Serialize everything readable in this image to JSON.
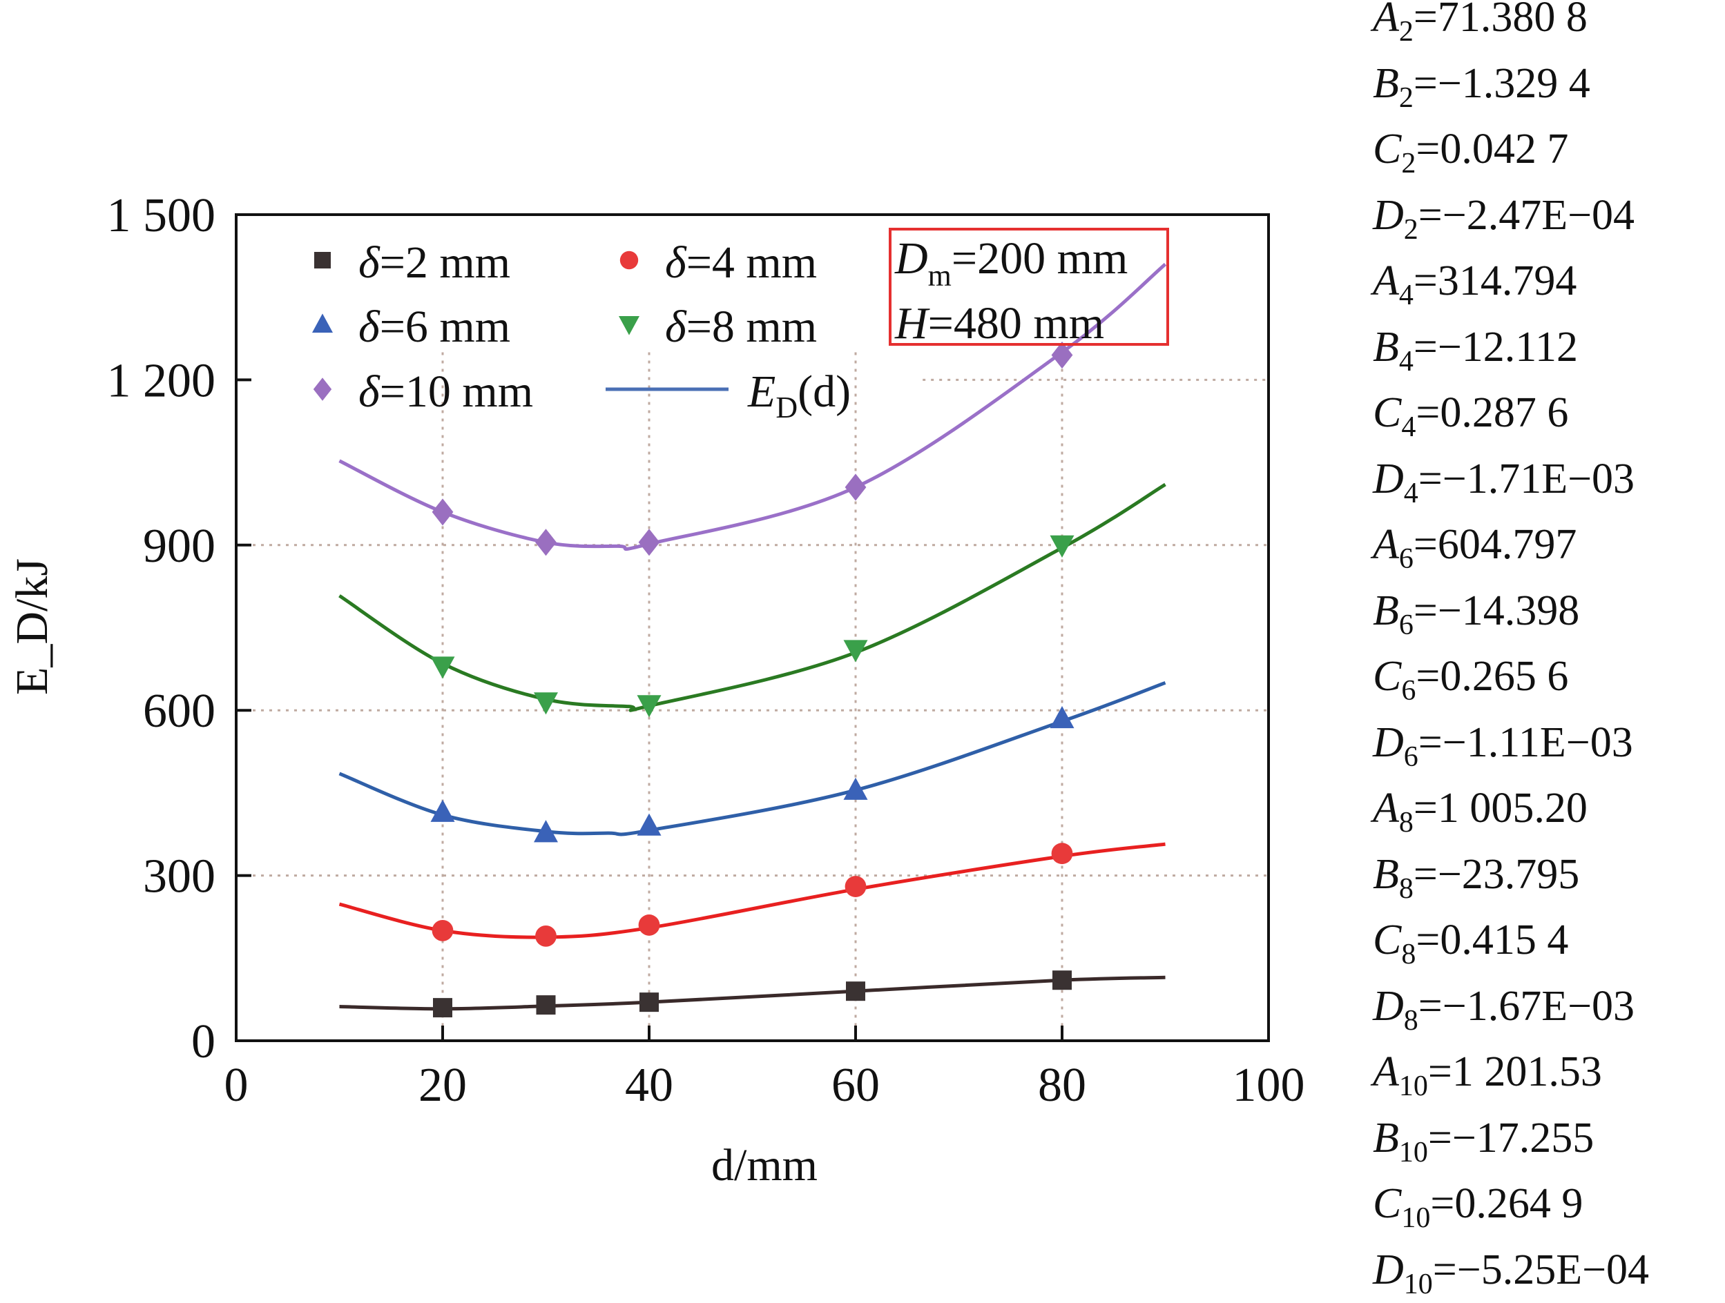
{
  "chart_data": {
    "type": "line",
    "title": "",
    "xlabel": "d/mm",
    "ylabel": "E_D/kJ",
    "xlim": [
      0,
      100
    ],
    "ylim": [
      0,
      1500
    ],
    "xticks": [
      "0",
      "20",
      "40",
      "60",
      "80",
      "100"
    ],
    "yticks": [
      "0",
      "300",
      "600",
      "900",
      "1 200",
      "1 500"
    ],
    "grid": true,
    "legend_position": "top-left",
    "annotation": {
      "line1_main": "D",
      "line1_sub": "m",
      "line1_rest": "=200 mm",
      "line2_main": "H",
      "line2_rest": "=480 mm"
    },
    "fit_legend": {
      "main": "E",
      "sub": "D",
      "rest": "(d)",
      "color": "#4a6fb5"
    },
    "series": [
      {
        "name": "δ=2 mm",
        "marker": "square",
        "color": "#3a3232",
        "line_color": "#3a2a2a",
        "x": [
          20,
          30,
          40,
          60,
          80
        ],
        "y": [
          60,
          65,
          70,
          90,
          110
        ],
        "fit_x": [
          10,
          20,
          30,
          40,
          60,
          80,
          90
        ],
        "fit_y": [
          62,
          58,
          63,
          70,
          90,
          110,
          115
        ]
      },
      {
        "name": "δ=4 mm",
        "marker": "circle",
        "color": "#e83a3a",
        "line_color": "#e82020",
        "x": [
          20,
          30,
          40,
          60,
          80
        ],
        "y": [
          200,
          190,
          210,
          280,
          340
        ],
        "fit_x": [
          10,
          20,
          30,
          40,
          60,
          80,
          90
        ],
        "fit_y": [
          248,
          200,
          188,
          205,
          275,
          335,
          357
        ]
      },
      {
        "name": "δ=6 mm",
        "marker": "triangle-up",
        "color": "#3a62b8",
        "line_color": "#2f5fa8",
        "x": [
          20,
          30,
          40,
          60,
          80
        ],
        "y": [
          415,
          378,
          390,
          455,
          585
        ],
        "fit_x": [
          10,
          20,
          30,
          36,
          40,
          60,
          80,
          90
        ],
        "fit_y": [
          485,
          410,
          380,
          377,
          382,
          455,
          580,
          650
        ]
      },
      {
        "name": "δ=8 mm",
        "marker": "triangle-down",
        "color": "#3aa04a",
        "line_color": "#2a7a22",
        "x": [
          20,
          30,
          40,
          60,
          80
        ],
        "y": [
          680,
          615,
          610,
          710,
          900
        ],
        "fit_x": [
          10,
          20,
          30,
          38,
          40,
          60,
          80,
          90
        ],
        "fit_y": [
          808,
          685,
          620,
          607,
          608,
          705,
          895,
          1010
        ]
      },
      {
        "name": "δ=10 mm",
        "marker": "diamond",
        "color": "#9a6fc0",
        "line_color": "#9a70c8",
        "x": [
          20,
          30,
          40,
          60,
          80
        ],
        "y": [
          960,
          905,
          905,
          1005,
          1245
        ],
        "fit_x": [
          10,
          20,
          30,
          37,
          40,
          60,
          80,
          90
        ],
        "fit_y": [
          1053,
          960,
          905,
          898,
          902,
          1005,
          1250,
          1410
        ]
      }
    ]
  },
  "coefficients": [
    {
      "letter": "A",
      "sub": "2",
      "value": "=71.380 8"
    },
    {
      "letter": "B",
      "sub": "2",
      "value": "=−1.329 4"
    },
    {
      "letter": "C",
      "sub": "2",
      "value": "=0.042 7"
    },
    {
      "letter": "D",
      "sub": "2",
      "value": "=−2.47E−04"
    },
    {
      "letter": "A",
      "sub": "4",
      "value": "=314.794"
    },
    {
      "letter": "B",
      "sub": "4",
      "value": "=−12.112"
    },
    {
      "letter": "C",
      "sub": "4",
      "value": "=0.287 6"
    },
    {
      "letter": "D",
      "sub": "4",
      "value": "=−1.71E−03"
    },
    {
      "letter": "A",
      "sub": "6",
      "value": "=604.797"
    },
    {
      "letter": "B",
      "sub": "6",
      "value": "=−14.398"
    },
    {
      "letter": "C",
      "sub": "6",
      "value": "=0.265 6"
    },
    {
      "letter": "D",
      "sub": "6",
      "value": "=−1.11E−03"
    },
    {
      "letter": "A",
      "sub": "8",
      "value": "=1 005.20"
    },
    {
      "letter": "B",
      "sub": "8",
      "value": "=−23.795"
    },
    {
      "letter": "C",
      "sub": "8",
      "value": "=0.415 4"
    },
    {
      "letter": "D",
      "sub": "8",
      "value": "=−1.67E−03"
    },
    {
      "letter": "A",
      "sub": "10",
      "value": "=1 201.53"
    },
    {
      "letter": "B",
      "sub": "10",
      "value": "=−17.255"
    },
    {
      "letter": "C",
      "sub": "10",
      "value": "=0.264 9"
    },
    {
      "letter": "D",
      "sub": "10",
      "value": "=−5.25E−04"
    }
  ]
}
